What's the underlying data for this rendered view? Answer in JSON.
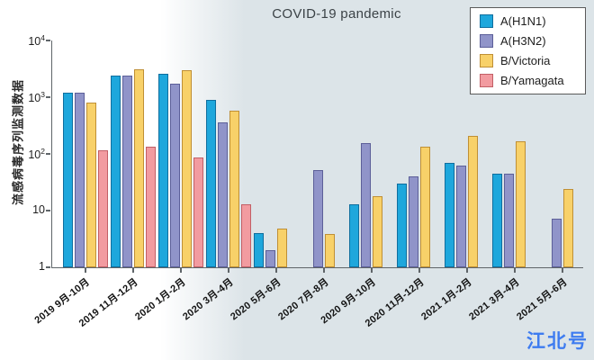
{
  "page": {
    "watermark": "江北号"
  },
  "chart_data": {
    "type": "bar",
    "title": "COVID-19 pandemic",
    "xlabel": "",
    "ylabel": "流感病毒序列监测数据",
    "yscale": "log",
    "ylim": [
      1,
      10000
    ],
    "y_ticks": [
      "1",
      "10",
      "10^2",
      "10^3",
      "10^4"
    ],
    "grid": false,
    "legend_position": "top-right",
    "background_accent": "#dce4e8",
    "categories": [
      "2019 9月-10月",
      "2019 11月-12月",
      "2020 1月-2月",
      "2020 3月-4月",
      "2020 5月-6月",
      "2020 7月-8月",
      "2020 9月-10月",
      "2020 11月-12月",
      "2021 1月-2月",
      "2021 3月-4月",
      "2021 5月-6月"
    ],
    "series": [
      {
        "name": "A(H1N1)",
        "color": "#1ea7dc",
        "border_color": "#0f6e9e",
        "values": [
          1200,
          2400,
          2600,
          880,
          4,
          null,
          13,
          30,
          70,
          45,
          null
        ]
      },
      {
        "name": "A(H3N2)",
        "color": "#9094c9",
        "border_color": "#5c5f99",
        "values": [
          1200,
          2400,
          1700,
          360,
          2,
          52,
          155,
          40,
          62,
          45,
          7.3
        ]
      },
      {
        "name": "B/Victoria",
        "color": "#f8d169",
        "border_color": "#bf8f35",
        "values": [
          800,
          3100,
          3000,
          580,
          4.8,
          3.9,
          18,
          135,
          210,
          165,
          24
        ]
      },
      {
        "name": "B/Yamagata",
        "color": "#f29ba0",
        "border_color": "#c25f66",
        "values": [
          115,
          135,
          85,
          13,
          null,
          null,
          null,
          null,
          null,
          null,
          null
        ]
      }
    ]
  }
}
